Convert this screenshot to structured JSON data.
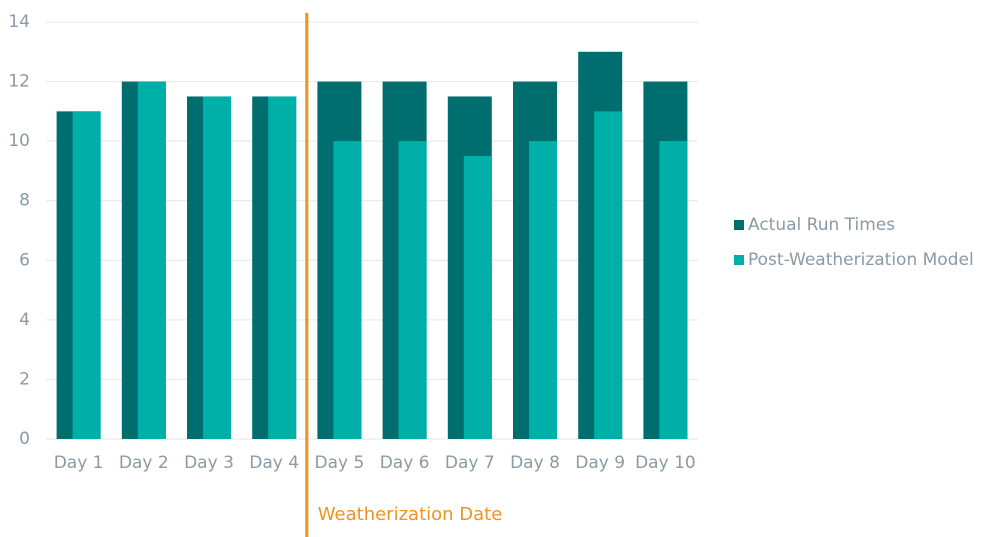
{
  "chart_data": {
    "type": "bar",
    "categories": [
      "Day 1",
      "Day 2",
      "Day 3",
      "Day 4",
      "Day 5",
      "Day 6",
      "Day 7",
      "Day 8",
      "Day 9",
      "Day 10"
    ],
    "series": [
      {
        "name": "Actual Run Times",
        "color": "#006e6e",
        "values": [
          11,
          12,
          11.5,
          11.5,
          12,
          12,
          11.5,
          12,
          13,
          12
        ]
      },
      {
        "name": "Post-Weatherization Model",
        "color": "#00b0a8",
        "values": [
          11,
          12,
          11.5,
          11.5,
          10,
          10,
          9.5,
          10,
          11,
          10
        ]
      }
    ],
    "ylim": [
      0,
      14
    ],
    "yticks": [
      0,
      2,
      4,
      6,
      8,
      10,
      12,
      14
    ],
    "grid": true,
    "legend": "right",
    "annotation": {
      "text": "Weatherization Date",
      "color": "#f0931e"
    }
  }
}
